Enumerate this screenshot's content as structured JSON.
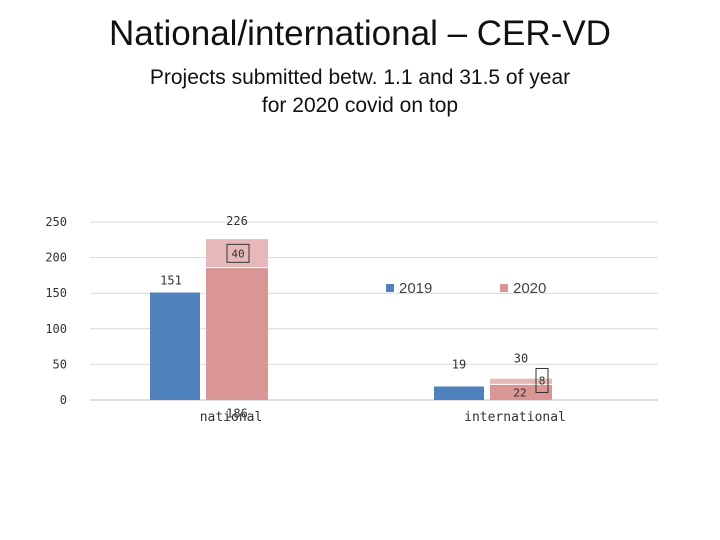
{
  "slide": {
    "title": "National/international – CER-VD",
    "subtitle_line1": "Projects submitted betw. 1.1 and 31.5 of year",
    "subtitle_line2": "for 2020 covid on top"
  },
  "colors": {
    "series_2019": "#4f81bd",
    "series_2020_base": "#d99694",
    "series_2020_top": "#e6b9b8",
    "gridline": "#d9d9d9",
    "axis_text": "#333333"
  },
  "chart_data": {
    "type": "bar",
    "categories": [
      "national",
      "international"
    ],
    "ylim": [
      0,
      250
    ],
    "yticks": [
      0,
      50,
      100,
      150,
      200,
      250
    ],
    "grid": true,
    "legend_position": "top-right",
    "legend": [
      "2019",
      "2020"
    ],
    "series": [
      {
        "name": "2019",
        "values": [
          151,
          19
        ]
      },
      {
        "name": "2020",
        "stack": [
          {
            "part": "base",
            "values": [
              186,
              22
            ]
          },
          {
            "part": "top",
            "values": [
              40,
              8
            ]
          }
        ],
        "totals": [
          226,
          30
        ]
      }
    ]
  }
}
